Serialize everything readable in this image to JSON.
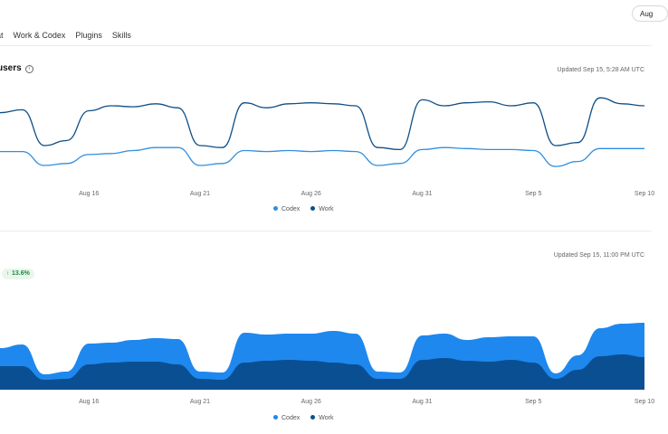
{
  "header": {
    "date_button": "Aug",
    "tabs": [
      "at",
      "Work & Codex",
      "Plugins",
      "Skills"
    ]
  },
  "colors": {
    "codex": "#2f8fe0",
    "work": "#0f4f86",
    "codex_area": "#1e88ee",
    "work_area": "#0b4f93"
  },
  "card1": {
    "title": "users",
    "info_icon": "info-icon",
    "updated": "Updated Sep 15, 5:28 AM UTC"
  },
  "card2": {
    "updated": "Updated Sep 15, 11:00 PM UTC",
    "badge": "13.6%",
    "badge_icon": "arrow-up-icon"
  },
  "legend": {
    "codex": "Codex",
    "work": "Work"
  },
  "chart_data": [
    {
      "type": "line",
      "x_ticks": [
        "Aug 16",
        "Aug 21",
        "Aug 26",
        "Aug 31",
        "Sep 5",
        "Sep 10"
      ],
      "x": [
        "Aug 12",
        "Aug 13",
        "Aug 14",
        "Aug 15",
        "Aug 16",
        "Aug 17",
        "Aug 18",
        "Aug 19",
        "Aug 20",
        "Aug 21",
        "Aug 22",
        "Aug 23",
        "Aug 24",
        "Aug 25",
        "Aug 26",
        "Aug 27",
        "Aug 28",
        "Aug 29",
        "Aug 30",
        "Aug 31",
        "Sep 1",
        "Sep 2",
        "Sep 3",
        "Sep 4",
        "Sep 5",
        "Sep 6",
        "Sep 7",
        "Sep 8",
        "Sep 9",
        "Sep 10"
      ],
      "series": [
        {
          "name": "Work",
          "values": [
            73,
            76,
            40,
            45,
            75,
            80,
            79,
            82,
            78,
            40,
            38,
            83,
            78,
            82,
            83,
            82,
            80,
            38,
            36,
            86,
            80,
            83,
            84,
            80,
            83,
            40,
            43,
            88,
            82,
            80
          ]
        },
        {
          "name": "Codex",
          "values": [
            34,
            34,
            20,
            22,
            31,
            32,
            35,
            38,
            38,
            20,
            22,
            35,
            34,
            35,
            34,
            35,
            34,
            20,
            22,
            36,
            38,
            37,
            36,
            36,
            35,
            19,
            24,
            37,
            37,
            37
          ]
        }
      ]
    },
    {
      "type": "area",
      "x_ticks": [
        "Aug 16",
        "Aug 21",
        "Aug 26",
        "Aug 31",
        "Sep 5",
        "Sep 10"
      ],
      "x": [
        "Aug 12",
        "Aug 13",
        "Aug 14",
        "Aug 15",
        "Aug 16",
        "Aug 17",
        "Aug 18",
        "Aug 19",
        "Aug 20",
        "Aug 21",
        "Aug 22",
        "Aug 23",
        "Aug 24",
        "Aug 25",
        "Aug 26",
        "Aug 27",
        "Aug 28",
        "Aug 29",
        "Aug 30",
        "Aug 31",
        "Sep 1",
        "Sep 2",
        "Sep 3",
        "Sep 4",
        "Sep 5",
        "Sep 6",
        "Sep 7",
        "Sep 8",
        "Sep 9",
        "Sep 10"
      ],
      "stacked": true,
      "series": [
        {
          "name": "Work",
          "values": [
            26,
            26,
            11,
            12,
            28,
            30,
            31,
            31,
            28,
            12,
            11,
            30,
            32,
            33,
            32,
            30,
            28,
            12,
            12,
            33,
            35,
            32,
            31,
            33,
            30,
            12,
            22,
            37,
            39,
            36
          ]
        },
        {
          "name": "Codex",
          "values": [
            20,
            24,
            6,
            8,
            23,
            22,
            24,
            26,
            28,
            8,
            8,
            33,
            29,
            29,
            30,
            35,
            34,
            8,
            7,
            27,
            27,
            23,
            27,
            26,
            29,
            6,
            16,
            31,
            34,
            38
          ]
        }
      ]
    }
  ]
}
